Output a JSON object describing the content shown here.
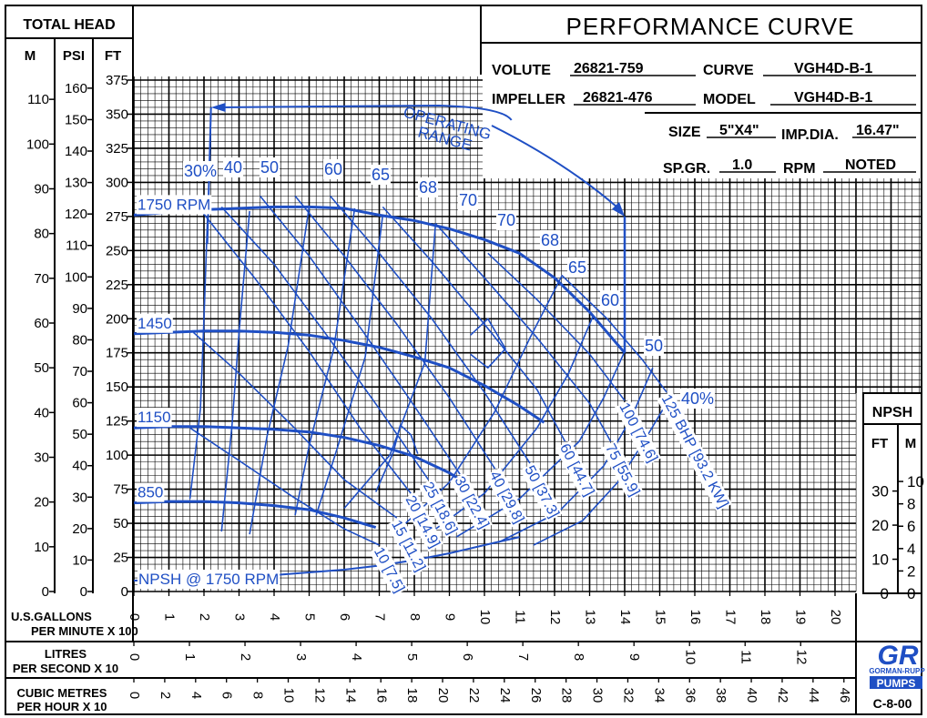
{
  "header": {
    "total_head": "TOTAL HEAD",
    "units": [
      "M",
      "PSI",
      "FT"
    ],
    "title": "PERFORMANCE CURVE",
    "volute_label": "VOLUTE",
    "volute": "26821-759",
    "curve_label": "CURVE",
    "curve": "VGH4D-B-1",
    "impeller_label": "IMPELLER",
    "impeller": "26821-476",
    "model_label": "MODEL",
    "model": "VGH4D-B-1",
    "size_label": "SIZE",
    "size": "5\"X4\"",
    "impdia_label": "IMP.DIA.",
    "impdia": "16.47\"",
    "spgr_label": "SP.GR.",
    "spgr": "1.0",
    "rpm_label": "RPM",
    "rpm": "NOTED"
  },
  "labels": {
    "operating_range_1": "OPERATING",
    "operating_range_2": "RANGE",
    "npsh_curve": "NPSH @ 1750 RPM",
    "npsh_box": "NPSH",
    "npsh_ft": "FT",
    "npsh_m": "M",
    "usgal_1": "U.S.GALLONS",
    "usgal_2": "PER MINUTE X 100",
    "litres_1": "LITRES",
    "litres_2": "PER SECOND X 10",
    "cubic_1": "CUBIC METRES",
    "cubic_2": "PER HOUR X 10",
    "brand_logo": "GR",
    "brand_1": "GORMAN-RUPP",
    "brand_2": "PUMPS",
    "doc_code": "C-8-00"
  },
  "chart_data": {
    "type": "line",
    "x_unit": "U.S. gallons per minute x 100",
    "y_unit": "ft",
    "xlim": [
      0,
      21.5
    ],
    "ylim": [
      0,
      390
    ],
    "grid": true,
    "scales": {
      "m_ticks": [
        "0",
        "10",
        "20",
        "30",
        "40",
        "50",
        "60",
        "70",
        "80",
        "90",
        "100",
        "110"
      ],
      "psi_ticks": [
        "0",
        "10",
        "20",
        "30",
        "40",
        "50",
        "60",
        "70",
        "80",
        "90",
        "100",
        "110",
        "120",
        "130",
        "140",
        "150",
        "160"
      ],
      "ft_ticks": [
        "0",
        "25",
        "50",
        "75",
        "100",
        "125",
        "150",
        "175",
        "200",
        "225",
        "250",
        "275",
        "300",
        "325",
        "350",
        "375"
      ],
      "gpm_ticks": [
        "0",
        "1",
        "2",
        "3",
        "4",
        "5",
        "6",
        "7",
        "8",
        "9",
        "10",
        "11",
        "12",
        "13",
        "14",
        "15",
        "16",
        "17",
        "18",
        "19",
        "20"
      ],
      "lps_ticks": [
        "0",
        "1",
        "2",
        "3",
        "4",
        "5",
        "6",
        "7",
        "8",
        "9",
        "10",
        "11",
        "12",
        "13"
      ],
      "m3h_ticks": [
        "0",
        "2",
        "4",
        "6",
        "8",
        "10",
        "12",
        "14",
        "16",
        "18",
        "20",
        "22",
        "24",
        "26",
        "28",
        "30",
        "32",
        "34",
        "36",
        "38",
        "40",
        "42",
        "44",
        "46"
      ],
      "npsh_ft_ticks": [
        "0",
        "10",
        "20",
        "30"
      ],
      "npsh_m_ticks": [
        "0",
        "2",
        "4",
        "6",
        "8",
        "10"
      ]
    },
    "head_curves": [
      {
        "label": "1750 RPM",
        "x": [
          0,
          2,
          4,
          5,
          6,
          7,
          8,
          9,
          10,
          11,
          12,
          13,
          14
        ],
        "y": [
          276,
          280,
          282,
          282,
          281,
          276,
          272,
          266,
          258,
          248,
          230,
          205,
          175
        ]
      },
      {
        "label": "1450",
        "x": [
          0,
          1,
          2,
          3,
          4,
          5,
          6,
          7,
          8,
          9,
          10,
          11,
          11.7
        ],
        "y": [
          189,
          190,
          191,
          191,
          190,
          188,
          184,
          179,
          172,
          164,
          151,
          136,
          124
        ]
      },
      {
        "label": "1150",
        "x": [
          0,
          1,
          2,
          3,
          4,
          5,
          6,
          7,
          8,
          9,
          9.3
        ],
        "y": [
          120,
          121,
          121,
          120,
          119,
          117,
          113,
          107,
          99,
          87,
          82
        ]
      },
      {
        "label": "850",
        "x": [
          0,
          1,
          2,
          3,
          4,
          5,
          6,
          6.9
        ],
        "y": [
          65,
          66,
          66,
          65,
          63,
          60,
          54,
          47
        ]
      }
    ],
    "efficiency_curves": [
      {
        "label": "30%",
        "x": [
          1.6,
          1.9,
          2.0,
          2.1
        ],
        "y": [
          68,
          134,
          200,
          275
        ]
      },
      {
        "label": "40",
        "x": [
          2.5,
          2.8,
          3.0,
          3.3
        ],
        "y": [
          44,
          122,
          190,
          279
        ]
      },
      {
        "label": "50",
        "x": [
          3.3,
          3.8,
          4.4,
          5.0
        ],
        "y": [
          42,
          114,
          180,
          282
        ]
      },
      {
        "label": "60",
        "x": [
          4.6,
          5.0,
          5.7,
          6.3
        ],
        "y": [
          56,
          107,
          178,
          281
        ]
      },
      {
        "label": "65",
        "x": [
          5.2,
          5.8,
          6.6,
          7.1
        ],
        "y": [
          56,
          105,
          172,
          276
        ]
      },
      {
        "label": "68",
        "x": [
          6.0,
          7.3,
          8.3,
          8.6
        ],
        "y": [
          61,
          100,
          168,
          268
        ]
      },
      {
        "label": "70",
        "x": [
          6.9,
          7.4,
          7.6,
          7.9,
          8.1
        ],
        "y": [
          73,
          102,
          122,
          115,
          101
        ]
      },
      {
        "label": "70",
        "x": [
          9.6,
          10.1,
          10.6,
          10.1,
          9.6
        ],
        "y": [
          174,
          164,
          178,
          200,
          188
        ]
      },
      {
        "label": "68",
        "x": [
          7.5,
          9.0,
          10.3,
          11.3,
          12.2
        ],
        "y": [
          44,
          80,
          132,
          186,
          231
        ]
      },
      {
        "label": "65",
        "x": [
          8.4,
          10.0,
          11.5,
          12.4,
          13.1
        ],
        "y": [
          42,
          72,
          120,
          160,
          202
        ]
      },
      {
        "label": "60",
        "x": [
          9.2,
          11.0,
          12.7,
          13.4,
          14.0
        ],
        "y": [
          40,
          68,
          110,
          142,
          176
        ]
      },
      {
        "label": "50",
        "x": [
          10.4,
          12.1,
          13.4,
          14.2,
          14.8
        ],
        "y": [
          36,
          58,
          92,
          128,
          164
        ]
      },
      {
        "label": "40%",
        "x": [
          11.4,
          12.8,
          13.8,
          14.5,
          15.1
        ],
        "y": [
          34,
          52,
          80,
          108,
          134
        ]
      }
    ],
    "bhp_lines": [
      {
        "label": "10 [7.5]",
        "x": [
          1.6,
          3.0,
          4.5,
          6.0,
          7.0
        ],
        "y": [
          120,
          96,
          70,
          46,
          34
        ]
      },
      {
        "label": "15 [11.2]",
        "x": [
          1.7,
          3.0,
          4.5,
          6.0,
          7.5
        ],
        "y": [
          190,
          160,
          122,
          82,
          54
        ]
      },
      {
        "label": "20 [14.9]",
        "x": [
          1.9,
          3.5,
          5.0,
          6.5,
          7.9
        ],
        "y": [
          280,
          228,
          176,
          118,
          72
        ]
      },
      {
        "label": "25 [18.6]",
        "x": [
          2.5,
          4.0,
          5.5,
          7.0,
          8.4
        ],
        "y": [
          282,
          240,
          188,
          134,
          82
        ]
      },
      {
        "label": "30 [22.4]",
        "x": [
          3.6,
          5.0,
          6.5,
          8.0,
          9.3
        ],
        "y": [
          290,
          246,
          192,
          136,
          86
        ]
      },
      {
        "label": "40 [29.8]",
        "x": [
          4.6,
          6.0,
          7.5,
          9.0,
          10.3
        ],
        "y": [
          290,
          246,
          196,
          142,
          90
        ]
      },
      {
        "label": "50 [37.3]",
        "x": [
          5.6,
          7.0,
          8.5,
          10.0,
          11.3
        ],
        "y": [
          290,
          248,
          200,
          146,
          94
        ]
      },
      {
        "label": "60 [44.7]",
        "x": [
          7.1,
          8.5,
          10.0,
          11.5,
          12.3
        ],
        "y": [
          282,
          242,
          196,
          148,
          110
        ]
      },
      {
        "label": "75 [55.9]",
        "x": [
          8.6,
          10.0,
          11.5,
          13.0,
          13.6
        ],
        "y": [
          270,
          230,
          186,
          138,
          110
        ]
      },
      {
        "label": "100 [74.6]",
        "x": [
          10.1,
          11.5,
          13.0,
          14.0
        ],
        "y": [
          248,
          214,
          174,
          140
        ]
      },
      {
        "label": "125 BHP [93.2 KW]",
        "x": [
          12.2,
          13.5,
          14.5,
          15.2
        ],
        "y": [
          232,
          200,
          170,
          146
        ]
      }
    ],
    "npsh_curve": {
      "label": "NPSH @ 1750 RPM",
      "x": [
        0,
        2,
        4,
        6,
        7,
        8,
        9,
        10,
        11
      ],
      "y": [
        8,
        9,
        12,
        16,
        19,
        23,
        28,
        34,
        40
      ]
    },
    "operating_range": {
      "label": "OPERATING RANGE",
      "x_min": 2.2,
      "x_max": 14.0,
      "y_top": 355,
      "y_marker": 275
    }
  }
}
